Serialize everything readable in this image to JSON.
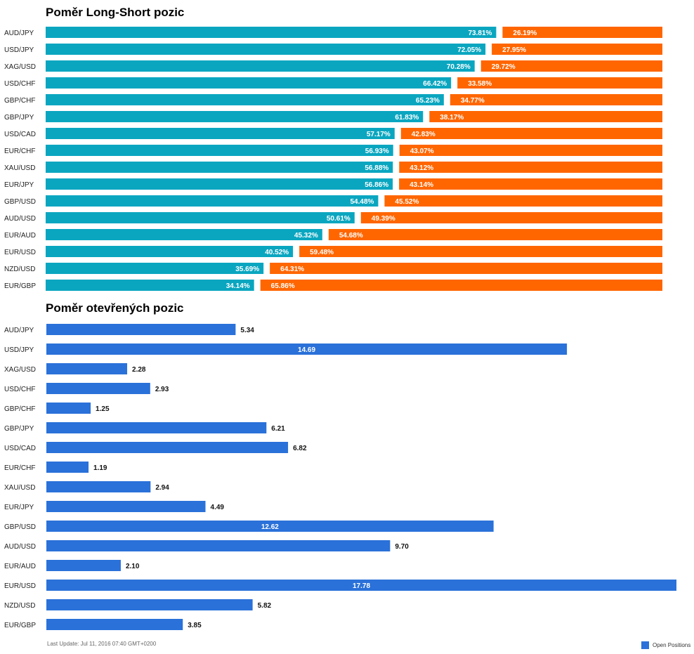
{
  "footer": "Last Update: Jul 11, 2016 07:40 GMT+0200",
  "colors": {
    "long": "#0aa6c0",
    "short": "#ff6600",
    "open": "#2a71d9"
  },
  "chart_data": [
    {
      "type": "bar",
      "title": "Poměr Long-Short pozic",
      "orientation": "horizontal",
      "stacked": true,
      "categories": [
        "AUD/JPY",
        "USD/JPY",
        "XAG/USD",
        "USD/CHF",
        "GBP/CHF",
        "GBP/JPY",
        "USD/CAD",
        "EUR/CHF",
        "XAU/USD",
        "EUR/JPY",
        "GBP/USD",
        "AUD/USD",
        "EUR/AUD",
        "EUR/USD",
        "NZD/USD",
        "EUR/GBP"
      ],
      "series": [
        {
          "values": [
            73.81,
            72.05,
            70.28,
            66.42,
            65.23,
            61.83,
            57.17,
            56.93,
            56.88,
            56.86,
            54.48,
            50.61,
            45.32,
            40.52,
            35.69,
            34.14
          ],
          "labels": [
            "73.81%",
            "72.05%",
            "70.28%",
            "66.42%",
            "65.23%",
            "61.83%",
            "57.17%",
            "56.93%",
            "56.88%",
            "56.86%",
            "54.48%",
            "50.61%",
            "45.32%",
            "40.52%",
            "35.69%",
            "34.14%"
          ]
        },
        {
          "values": [
            26.19,
            27.95,
            29.72,
            33.58,
            34.77,
            38.17,
            42.83,
            43.07,
            43.12,
            43.14,
            45.52,
            49.39,
            54.68,
            59.48,
            64.31,
            65.86
          ],
          "labels": [
            "26.19%",
            "27.95%",
            "29.72%",
            "33.58%",
            "34.77%",
            "38.17%",
            "42.83%",
            "43.07%",
            "43.12%",
            "43.14%",
            "45.52%",
            "49.39%",
            "54.68%",
            "59.48%",
            "64.31%",
            "65.86%"
          ]
        }
      ],
      "xlim": [
        0,
        100
      ],
      "grid": false
    },
    {
      "type": "bar",
      "title": "Poměr otevřených pozic",
      "orientation": "horizontal",
      "categories": [
        "AUD/JPY",
        "USD/JPY",
        "XAG/USD",
        "USD/CHF",
        "GBP/CHF",
        "GBP/JPY",
        "USD/CAD",
        "EUR/CHF",
        "XAU/USD",
        "EUR/JPY",
        "GBP/USD",
        "AUD/USD",
        "EUR/AUD",
        "EUR/USD",
        "NZD/USD",
        "EUR/GBP"
      ],
      "series": [
        {
          "name": "Open Positions",
          "values": [
            5.34,
            14.69,
            2.28,
            2.93,
            1.25,
            6.21,
            6.82,
            1.19,
            2.94,
            4.49,
            12.62,
            9.7,
            2.1,
            17.78,
            5.82,
            3.85
          ],
          "labels": [
            "5.34",
            "14.69",
            "2.28",
            "2.93",
            "1.25",
            "6.21",
            "6.82",
            "1.19",
            "2.94",
            "4.49",
            "12.62",
            "9.70",
            "2.10",
            "17.78",
            "5.82",
            "3.85"
          ]
        }
      ],
      "legend_position": "bottom-right",
      "grid": false
    }
  ]
}
